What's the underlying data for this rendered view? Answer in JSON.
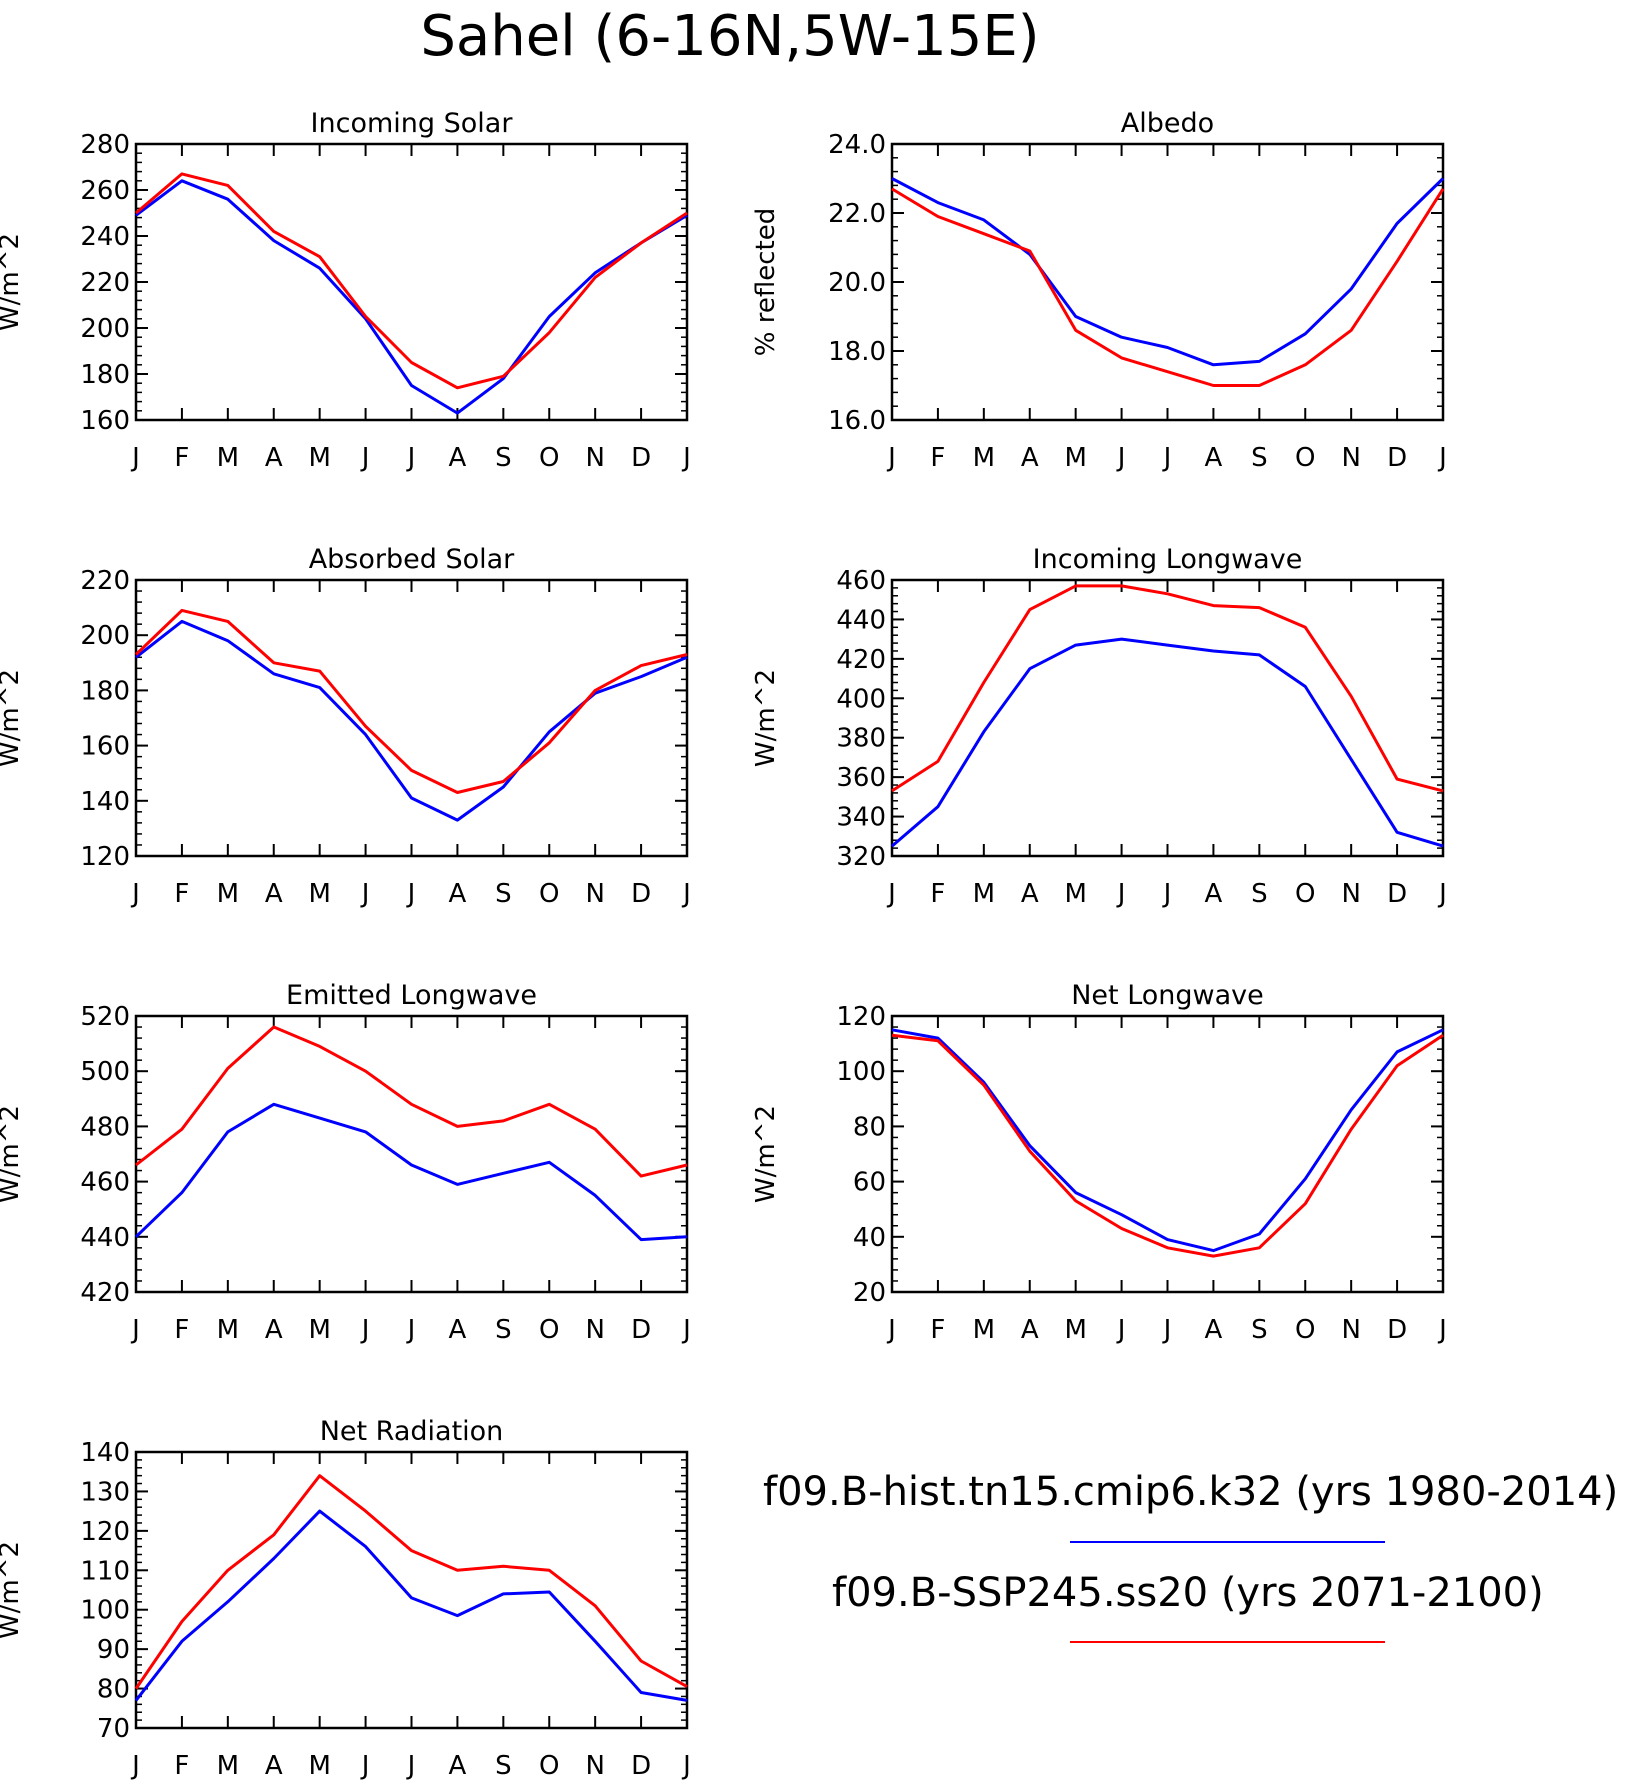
{
  "figure": {
    "title": "Sahel (6-16N,5W-15E)"
  },
  "legend": [
    {
      "label": "f09.B-hist.tn15.cmip6.k32 (yrs 1980-2014)",
      "color": "#0000ff"
    },
    {
      "label": "f09.B-SSP245.ss20 (yrs 2071-2100)",
      "color": "#ff0000"
    }
  ],
  "chart_data": [
    {
      "type": "line",
      "title": "Incoming Solar",
      "ylabel": "W/m^2",
      "categories": [
        "J",
        "F",
        "M",
        "A",
        "M",
        "J",
        "J",
        "A",
        "S",
        "O",
        "N",
        "D",
        "J"
      ],
      "ylim": [
        160,
        280
      ],
      "yticks": [
        160,
        180,
        200,
        220,
        240,
        260,
        280
      ],
      "ytick_labels": [
        "160",
        "180",
        "200",
        "220",
        "240",
        "260",
        "280"
      ],
      "series": [
        {
          "name": "f09.B-hist.tn15.cmip6.k32 (yrs 1980-2014)",
          "color": "#0000ff",
          "values": [
            249,
            264,
            256,
            238,
            226,
            204,
            175,
            163,
            178,
            205,
            224,
            237,
            249
          ]
        },
        {
          "name": "f09.B-SSP245.ss20 (yrs 2071-2100)",
          "color": "#ff0000",
          "values": [
            250,
            267,
            262,
            242,
            231,
            205,
            185,
            174,
            179,
            198,
            222,
            237,
            250
          ]
        }
      ]
    },
    {
      "type": "line",
      "title": "Albedo",
      "ylabel": "% reflected",
      "categories": [
        "J",
        "F",
        "M",
        "A",
        "M",
        "J",
        "J",
        "A",
        "S",
        "O",
        "N",
        "D",
        "J"
      ],
      "ylim": [
        16,
        24
      ],
      "yticks": [
        16,
        18,
        20,
        22,
        24
      ],
      "ytick_labels": [
        "16.0",
        "18.0",
        "20.0",
        "22.0",
        "24.0"
      ],
      "series": [
        {
          "name": "f09.B-hist.tn15.cmip6.k32 (yrs 1980-2014)",
          "color": "#0000ff",
          "values": [
            23.0,
            22.3,
            21.8,
            20.8,
            19.0,
            18.4,
            18.1,
            17.6,
            17.7,
            18.5,
            19.8,
            21.7,
            23.0
          ]
        },
        {
          "name": "f09.B-SSP245.ss20 (yrs 2071-2100)",
          "color": "#ff0000",
          "values": [
            22.7,
            21.9,
            21.4,
            20.9,
            18.6,
            17.8,
            17.4,
            17.0,
            17.0,
            17.6,
            18.6,
            20.6,
            22.7
          ]
        }
      ]
    },
    {
      "type": "line",
      "title": "Absorbed Solar",
      "ylabel": "W/m^2",
      "categories": [
        "J",
        "F",
        "M",
        "A",
        "M",
        "J",
        "J",
        "A",
        "S",
        "O",
        "N",
        "D",
        "J"
      ],
      "ylim": [
        120,
        220
      ],
      "yticks": [
        120,
        140,
        160,
        180,
        200,
        220
      ],
      "ytick_labels": [
        "120",
        "140",
        "160",
        "180",
        "200",
        "220"
      ],
      "series": [
        {
          "name": "f09.B-hist.tn15.cmip6.k32 (yrs 1980-2014)",
          "color": "#0000ff",
          "values": [
            192,
            205,
            198,
            186,
            181,
            164,
            141,
            133,
            145,
            165,
            179,
            185,
            192
          ]
        },
        {
          "name": "f09.B-SSP245.ss20 (yrs 2071-2100)",
          "color": "#ff0000",
          "values": [
            193,
            209,
            205,
            190,
            187,
            167,
            151,
            143,
            147,
            161,
            180,
            189,
            193
          ]
        }
      ]
    },
    {
      "type": "line",
      "title": "Incoming Longwave",
      "ylabel": "W/m^2",
      "categories": [
        "J",
        "F",
        "M",
        "A",
        "M",
        "J",
        "J",
        "A",
        "S",
        "O",
        "N",
        "D",
        "J"
      ],
      "ylim": [
        320,
        460
      ],
      "yticks": [
        320,
        340,
        360,
        380,
        400,
        420,
        440,
        460
      ],
      "ytick_labels": [
        "320",
        "340",
        "360",
        "380",
        "400",
        "420",
        "440",
        "460"
      ],
      "series": [
        {
          "name": "f09.B-hist.tn15.cmip6.k32 (yrs 1980-2014)",
          "color": "#0000ff",
          "values": [
            325,
            345,
            383,
            415,
            427,
            430,
            427,
            424,
            422,
            406,
            369,
            332,
            325
          ]
        },
        {
          "name": "f09.B-SSP245.ss20 (yrs 2071-2100)",
          "color": "#ff0000",
          "values": [
            353,
            368,
            408,
            445,
            457,
            457,
            453,
            447,
            446,
            436,
            401,
            359,
            353
          ]
        }
      ]
    },
    {
      "type": "line",
      "title": "Emitted Longwave",
      "ylabel": "W/m^2",
      "categories": [
        "J",
        "F",
        "M",
        "A",
        "M",
        "J",
        "J",
        "A",
        "S",
        "O",
        "N",
        "D",
        "J"
      ],
      "ylim": [
        420,
        520
      ],
      "yticks": [
        420,
        440,
        460,
        480,
        500,
        520
      ],
      "ytick_labels": [
        "420",
        "440",
        "460",
        "480",
        "500",
        "520"
      ],
      "series": [
        {
          "name": "f09.B-hist.tn15.cmip6.k32 (yrs 1980-2014)",
          "color": "#0000ff",
          "values": [
            440,
            456,
            478,
            488,
            483,
            478,
            466,
            459,
            463,
            467,
            455,
            439,
            440
          ]
        },
        {
          "name": "f09.B-SSP245.ss20 (yrs 2071-2100)",
          "color": "#ff0000",
          "values": [
            466,
            479,
            501,
            516,
            509,
            500,
            488,
            480,
            482,
            488,
            479,
            462,
            466
          ]
        }
      ]
    },
    {
      "type": "line",
      "title": "Net Longwave",
      "ylabel": "W/m^2",
      "categories": [
        "J",
        "F",
        "M",
        "A",
        "M",
        "J",
        "J",
        "A",
        "S",
        "O",
        "N",
        "D",
        "J"
      ],
      "ylim": [
        20,
        120
      ],
      "yticks": [
        20,
        40,
        60,
        80,
        100,
        120
      ],
      "ytick_labels": [
        "20",
        "40",
        "60",
        "80",
        "100",
        "120"
      ],
      "series": [
        {
          "name": "f09.B-hist.tn15.cmip6.k32 (yrs 1980-2014)",
          "color": "#0000ff",
          "values": [
            115,
            112,
            96,
            73,
            56,
            48,
            39,
            35,
            41,
            61,
            86,
            107,
            115
          ]
        },
        {
          "name": "f09.B-SSP245.ss20 (yrs 2071-2100)",
          "color": "#ff0000",
          "values": [
            113,
            111,
            95,
            71,
            53,
            43,
            36,
            33,
            36,
            52,
            79,
            102,
            113
          ]
        }
      ]
    },
    {
      "type": "line",
      "title": "Net Radiation",
      "ylabel": "W/m^2",
      "categories": [
        "J",
        "F",
        "M",
        "A",
        "M",
        "J",
        "J",
        "A",
        "S",
        "O",
        "N",
        "D",
        "J"
      ],
      "ylim": [
        70,
        140
      ],
      "yticks": [
        70,
        80,
        90,
        100,
        110,
        120,
        130,
        140
      ],
      "ytick_labels": [
        "70",
        "80",
        "90",
        "100",
        "110",
        "120",
        "130",
        "140"
      ],
      "series": [
        {
          "name": "f09.B-hist.tn15.cmip6.k32 (yrs 1980-2014)",
          "color": "#0000ff",
          "values": [
            77,
            92,
            102,
            113,
            125,
            116,
            103,
            98.5,
            104,
            104.5,
            92,
            79,
            77
          ]
        },
        {
          "name": "f09.B-SSP245.ss20 (yrs 2071-2100)",
          "color": "#ff0000",
          "values": [
            80,
            97,
            110,
            119,
            134,
            125,
            115,
            110,
            111,
            110,
            101,
            87,
            80.5
          ]
        }
      ]
    }
  ]
}
